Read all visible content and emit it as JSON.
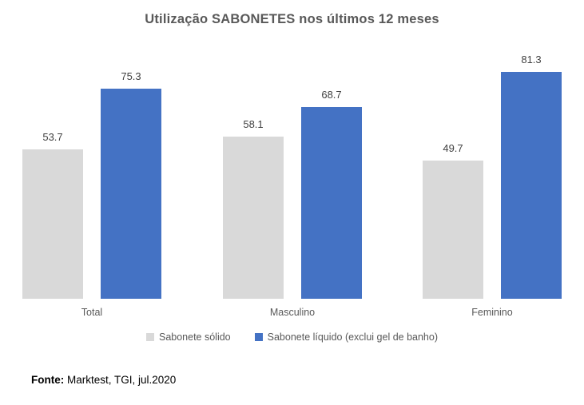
{
  "title": "Utilização SABONETES nos últimos 12 meses",
  "chart_data": {
    "type": "bar",
    "title": "Utilização SABONETES nos últimos 12 meses",
    "categories": [
      "Total",
      "Masculino",
      "Feminino"
    ],
    "series": [
      {
        "name": "Sabonete sólido",
        "color": "#d9d9d9",
        "values": [
          53.7,
          58.1,
          49.7
        ]
      },
      {
        "name": "Sabonete líquido (exclui gel de banho)",
        "color": "#4472c4",
        "values": [
          75.3,
          68.7,
          81.3
        ]
      }
    ],
    "xlabel": "",
    "ylabel": "",
    "ylim": [
      0,
      90
    ],
    "grid": false,
    "axes_visible": false,
    "data_labels": true,
    "legend_position": "bottom",
    "colors": {
      "title_text": "#595959",
      "data_label_text": "#404040",
      "category_text": "#595959",
      "legend_text": "#595959",
      "background": "#ffffff"
    }
  },
  "footer": {
    "label": "Fonte:",
    "text": " Marktest, TGI, jul.2020"
  }
}
